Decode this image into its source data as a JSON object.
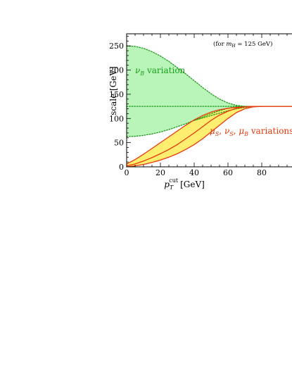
{
  "chart_data": {
    "type": "line",
    "title": "",
    "annotation": "(for m_H = 125 GeV)",
    "annotation_parts": {
      "prefix": "(for ",
      "var": "m",
      "sub": "H",
      "rest": " = 125 GeV)"
    },
    "xlabel": "p_T^cut [GeV]",
    "xlabel_parts": {
      "var": "p",
      "sub": "T",
      "sup": "cut",
      "unit": "[GeV]"
    },
    "ylabel": "scale [GeV]",
    "xlim": [
      0,
      100
    ],
    "ylim": [
      0,
      275
    ],
    "x_ticks": [
      0,
      20,
      40,
      60,
      80
    ],
    "y_ticks": [
      0,
      50,
      100,
      150,
      200,
      250
    ],
    "band_labels": {
      "nuB": {
        "text": "ν_B variation",
        "sym": "ν",
        "sub": "B",
        "rest": " variation",
        "color": "#18a018"
      },
      "muS": {
        "text": "μ_S, ν_S, μ_B variations",
        "parts": [
          [
            "μ",
            "S"
          ],
          [
            "ν",
            "S"
          ],
          [
            "μ",
            "B"
          ]
        ],
        "rest": " variations",
        "color": "#e8380a"
      }
    },
    "colors": {
      "green_fill": "#b9f5b9",
      "green_line": "#1c9a1c",
      "yellow_fill": "#ffee70",
      "red_line": "#e8380a"
    },
    "series": [
      {
        "name": "central",
        "style": "dotted",
        "x": [
          0,
          10,
          20,
          30,
          40,
          50,
          60,
          70,
          80,
          100
        ],
        "y": [
          125,
          125,
          125,
          125,
          125,
          125,
          125,
          125,
          125,
          125
        ]
      },
      {
        "name": "nuB_upper",
        "style": "dotted",
        "x": [
          0,
          5,
          10,
          15,
          20,
          25,
          30,
          35,
          40,
          45,
          50,
          55,
          60,
          65,
          70,
          75,
          80
        ],
        "y": [
          250,
          249,
          245,
          238,
          229,
          218,
          205,
          192,
          178,
          164,
          151,
          140,
          132,
          127,
          125,
          125,
          125
        ]
      },
      {
        "name": "nuB_lower",
        "style": "dotted",
        "x": [
          0,
          5,
          10,
          15,
          20,
          25,
          30,
          35,
          40,
          45,
          50,
          55,
          60,
          65,
          70,
          75,
          80
        ],
        "y": [
          62.5,
          63,
          65,
          68,
          72,
          77,
          83,
          89,
          96,
          103,
          110,
          116,
          121,
          124,
          125,
          125,
          125
        ]
      },
      {
        "name": "lower_dotted",
        "style": "dotted",
        "x": [
          40,
          45,
          50,
          55,
          60,
          65,
          70,
          75,
          80
        ],
        "y": [
          96,
          101,
          106,
          111,
          116,
          120,
          123,
          125,
          125
        ]
      },
      {
        "name": "muS_upper",
        "style": "solid",
        "x": [
          0,
          5,
          10,
          15,
          20,
          25,
          30,
          35,
          40,
          45,
          50,
          55,
          60,
          65,
          70,
          75,
          80,
          90,
          100
        ],
        "y": [
          6,
          15,
          26,
          38,
          50,
          62,
          74,
          86,
          97,
          106,
          113,
          118,
          121,
          123,
          124,
          125,
          125,
          125,
          125
        ]
      },
      {
        "name": "muS_central",
        "style": "solid",
        "x": [
          0,
          5,
          10,
          15,
          20,
          25,
          30,
          35,
          40,
          45,
          50,
          55,
          60,
          65,
          70,
          75,
          80,
          90,
          100
        ],
        "y": [
          2,
          6,
          12,
          19,
          27,
          36,
          46,
          58,
          70,
          83,
          96,
          107,
          115,
          121,
          124,
          125,
          125,
          125,
          125
        ]
      },
      {
        "name": "muS_lower",
        "style": "solid",
        "x": [
          0,
          5,
          10,
          15,
          20,
          25,
          30,
          35,
          40,
          45,
          50,
          55,
          60,
          65,
          70,
          75,
          80
        ],
        "y": [
          0,
          2,
          5,
          9,
          14,
          20,
          27,
          36,
          46,
          58,
          72,
          86,
          100,
          112,
          120,
          124,
          125
        ]
      }
    ]
  }
}
